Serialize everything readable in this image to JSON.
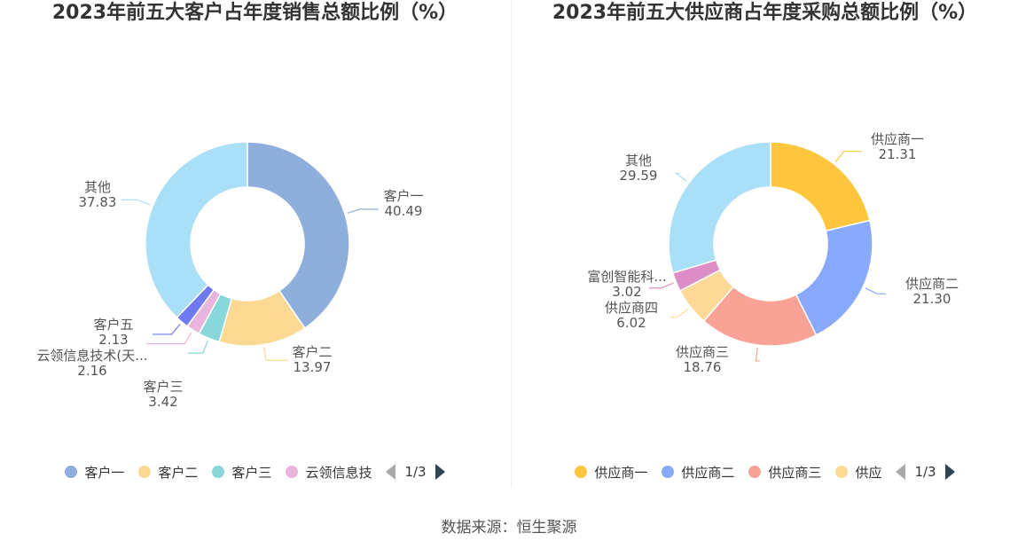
{
  "chart_data": [
    {
      "type": "pie",
      "title": "2023年前五大客户占年度销售总额比例（%）",
      "categories": [
        "客户一",
        "客户二",
        "客户三",
        "云领信息技术(天...",
        "客户五",
        "其他"
      ],
      "values": [
        40.49,
        13.97,
        3.42,
        2.16,
        2.13,
        37.83
      ],
      "value_labels": [
        "40.49",
        "13.97",
        "3.42",
        "2.16",
        "2.13",
        "37.83"
      ],
      "colors": [
        "#8eaedc",
        "#fcd993",
        "#88d7da",
        "#e8b6dd",
        "#6f7af0",
        "#aadff8"
      ],
      "legend": {
        "placement": "bottom",
        "items": [
          "客户一",
          "客户二",
          "客户三",
          "云领信息技"
        ],
        "page": "1/3"
      }
    },
    {
      "type": "pie",
      "title": "2023年前五大供应商占年度采购总额比例（%）",
      "categories": [
        "供应商一",
        "供应商二",
        "供应商三",
        "供应商四",
        "富创智能科...",
        "其他"
      ],
      "values": [
        21.31,
        21.3,
        18.76,
        6.02,
        3.02,
        29.59
      ],
      "value_labels": [
        "21.31",
        "21.30",
        "18.76",
        "6.02",
        "3.02",
        "29.59"
      ],
      "colors": [
        "#ffc53d",
        "#89a9fc",
        "#f9a397",
        "#fdd896",
        "#dd8ec6",
        "#aadff8"
      ],
      "legend": {
        "placement": "bottom",
        "items": [
          "供应商一",
          "供应商二",
          "供应商三",
          "供应"
        ],
        "page": "1/3"
      }
    }
  ],
  "source": "数据来源：恒生聚源"
}
